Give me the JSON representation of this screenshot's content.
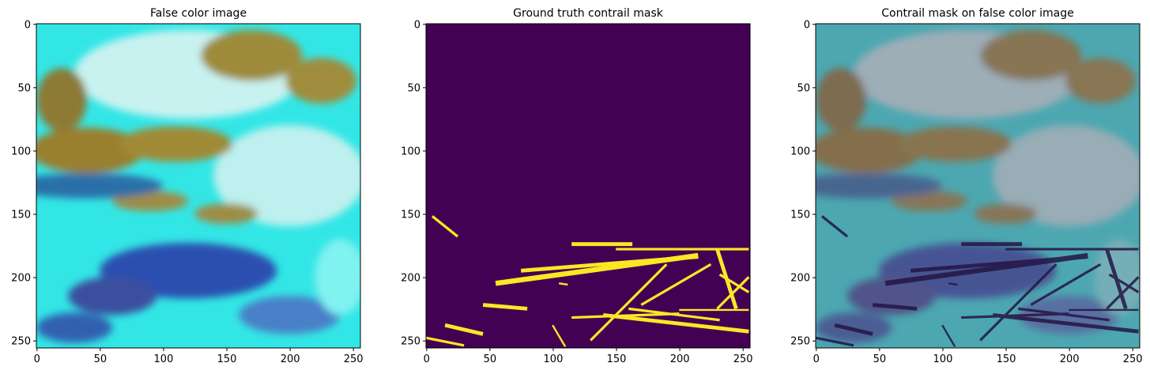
{
  "chart_data": [
    {
      "type": "image",
      "title": "False color image",
      "xlim": [
        -0.5,
        255.5
      ],
      "ylim": [
        255.5,
        -0.5
      ],
      "xticks": [
        0,
        50,
        100,
        150,
        200,
        250
      ],
      "yticks": [
        0,
        50,
        100,
        150,
        200,
        250
      ]
    },
    {
      "type": "image",
      "title": "Ground truth contrail mask",
      "xlim": [
        -0.5,
        255.5
      ],
      "ylim": [
        255.5,
        -0.5
      ],
      "xticks": [
        0,
        50,
        100,
        150,
        200,
        250
      ],
      "yticks": [
        0,
        50,
        100,
        150,
        200,
        250
      ]
    },
    {
      "type": "image",
      "title": "Contrail mask on false color image",
      "xlim": [
        -0.5,
        255.5
      ],
      "ylim": [
        255.5,
        -0.5
      ],
      "xticks": [
        0,
        50,
        100,
        150,
        200,
        250
      ],
      "yticks": [
        0,
        50,
        100,
        150,
        200,
        250
      ]
    }
  ]
}
